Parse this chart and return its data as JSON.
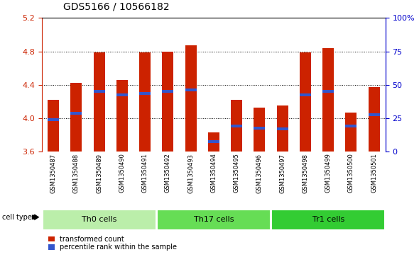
{
  "title": "GDS5166 / 10566182",
  "samples": [
    "GSM1350487",
    "GSM1350488",
    "GSM1350489",
    "GSM1350490",
    "GSM1350491",
    "GSM1350492",
    "GSM1350493",
    "GSM1350494",
    "GSM1350495",
    "GSM1350496",
    "GSM1350497",
    "GSM1350498",
    "GSM1350499",
    "GSM1350500",
    "GSM1350501"
  ],
  "bar_values": [
    4.22,
    4.42,
    4.79,
    4.46,
    4.79,
    4.8,
    4.87,
    3.83,
    4.22,
    4.13,
    4.15,
    4.79,
    4.84,
    4.07,
    4.37
  ],
  "blue_values": [
    3.98,
    4.06,
    4.32,
    4.28,
    4.3,
    4.32,
    4.34,
    3.72,
    3.91,
    3.88,
    3.87,
    4.28,
    4.32,
    3.91,
    4.04
  ],
  "ymin": 3.6,
  "ymax": 5.2,
  "y2min": 0,
  "y2max": 100,
  "yticks": [
    3.6,
    4.0,
    4.4,
    4.8,
    5.2
  ],
  "y2ticks": [
    0,
    25,
    50,
    75,
    100
  ],
  "bar_color": "#CC2200",
  "blue_color": "#3355CC",
  "bar_width": 0.5,
  "group_defs": [
    {
      "label": "Th0 cells",
      "start": 0,
      "end": 4,
      "color": "#BBEEAA"
    },
    {
      "label": "Th17 cells",
      "start": 5,
      "end": 9,
      "color": "#66DD55"
    },
    {
      "label": "Tr1 cells",
      "start": 10,
      "end": 14,
      "color": "#33CC33"
    }
  ],
  "cell_type_label": "cell type",
  "legend_red_label": "transformed count",
  "legend_blue_label": "percentile rank within the sample",
  "fig_bg": "#FFFFFF",
  "plot_bg": "#FFFFFF",
  "sample_area_bg": "#CCCCCC",
  "tick_color_left": "#CC2200",
  "tick_color_right": "#0000CC",
  "title_fontsize": 10,
  "label_fontsize": 6,
  "group_fontsize": 8,
  "legend_fontsize": 7
}
